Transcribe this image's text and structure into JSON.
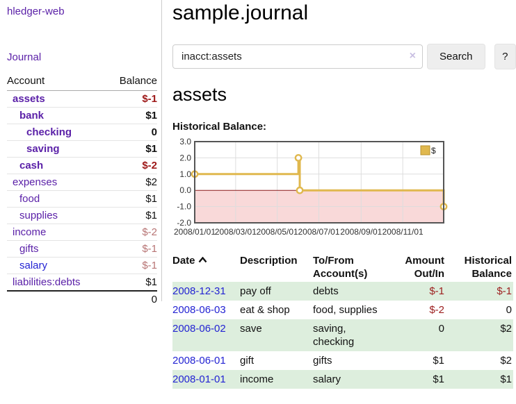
{
  "colors": {
    "link_purple": "#5b21a8",
    "link_blue": "#2323d3",
    "negative_strong": "#9d1818",
    "negative_soft": "#b77474",
    "row_green": "#ddeedd",
    "chart_line": "#e0b84e",
    "chart_negative_fill": "#f9d9d9",
    "chart_zero_line": "#8b1a1a"
  },
  "sidebar": {
    "app_title": "hledger-web",
    "journal_link": "Journal",
    "accounts": {
      "col_account": "Account",
      "col_balance": "Balance",
      "rows": [
        {
          "name": "assets",
          "balance": "$-1"
        },
        {
          "name": "bank",
          "balance": "$1"
        },
        {
          "name": "checking",
          "balance": "0"
        },
        {
          "name": "saving",
          "balance": "$1"
        },
        {
          "name": "cash",
          "balance": "$-2"
        },
        {
          "name": "expenses",
          "balance": "$2"
        },
        {
          "name": "food",
          "balance": "$1"
        },
        {
          "name": "supplies",
          "balance": "$1"
        },
        {
          "name": "income",
          "balance": "$-2"
        },
        {
          "name": "gifts",
          "balance": "$-1"
        },
        {
          "name": "salary",
          "balance": "$-1"
        },
        {
          "name": "liabilities:debts",
          "balance": "$1"
        }
      ],
      "total": "0"
    }
  },
  "main": {
    "title": "sample.journal",
    "search": {
      "value": "inacct:assets",
      "clear_icon": "×",
      "search_button": "Search",
      "help_button": "?"
    },
    "account_heading": "assets",
    "section_label": "Historical Balance:"
  },
  "chart_data": {
    "type": "line",
    "title": "Historical Balance",
    "step": true,
    "series": [
      {
        "name": "$",
        "points": [
          {
            "x": "2008-01-01",
            "y": 1
          },
          {
            "x": "2008-06-01",
            "y": 2
          },
          {
            "x": "2008-06-03",
            "y": 0
          },
          {
            "x": "2008-12-31",
            "y": -1
          }
        ]
      }
    ],
    "xrange": [
      "2008-01-01",
      "2008-12-31"
    ],
    "ylim": [
      -2,
      3
    ],
    "yticks": [
      3.0,
      2.0,
      1.0,
      0.0,
      -1.0,
      -2.0
    ],
    "xticks": [
      {
        "date": "2008-01-01",
        "label": "2008/01/01"
      },
      {
        "date": "2008-03-01",
        "label": "2008/03/01"
      },
      {
        "date": "2008-05-01",
        "label": "2008/05/01"
      },
      {
        "date": "2008-07-01",
        "label": "2008/07/01"
      },
      {
        "date": "2008-09-01",
        "label": "2008/09/01"
      },
      {
        "date": "2008-11-01",
        "label": "2008/11/01"
      }
    ],
    "grid": true,
    "legend": [
      {
        "label": "$"
      }
    ],
    "legend_position": "top-right",
    "negative_region_shaded": true
  },
  "transactions": {
    "headers": {
      "date": "Date",
      "description": "Description",
      "accounts": "To/From Account(s)",
      "amount": "Amount Out/In",
      "balance": "Historical Balance"
    },
    "rows": [
      {
        "date": "2008-12-31",
        "description": "pay off",
        "accounts": "debts",
        "amount": "$-1",
        "balance": "$-1"
      },
      {
        "date": "2008-06-03",
        "description": "eat & shop",
        "accounts": "food, supplies",
        "amount": "$-2",
        "balance": "0"
      },
      {
        "date": "2008-06-02",
        "description": "save",
        "accounts": "saving, checking",
        "amount": "0",
        "balance": "$2"
      },
      {
        "date": "2008-06-01",
        "description": "gift",
        "accounts": "gifts",
        "amount": "$1",
        "balance": "$2"
      },
      {
        "date": "2008-01-01",
        "description": "income",
        "accounts": "salary",
        "amount": "$1",
        "balance": "$1"
      }
    ]
  }
}
